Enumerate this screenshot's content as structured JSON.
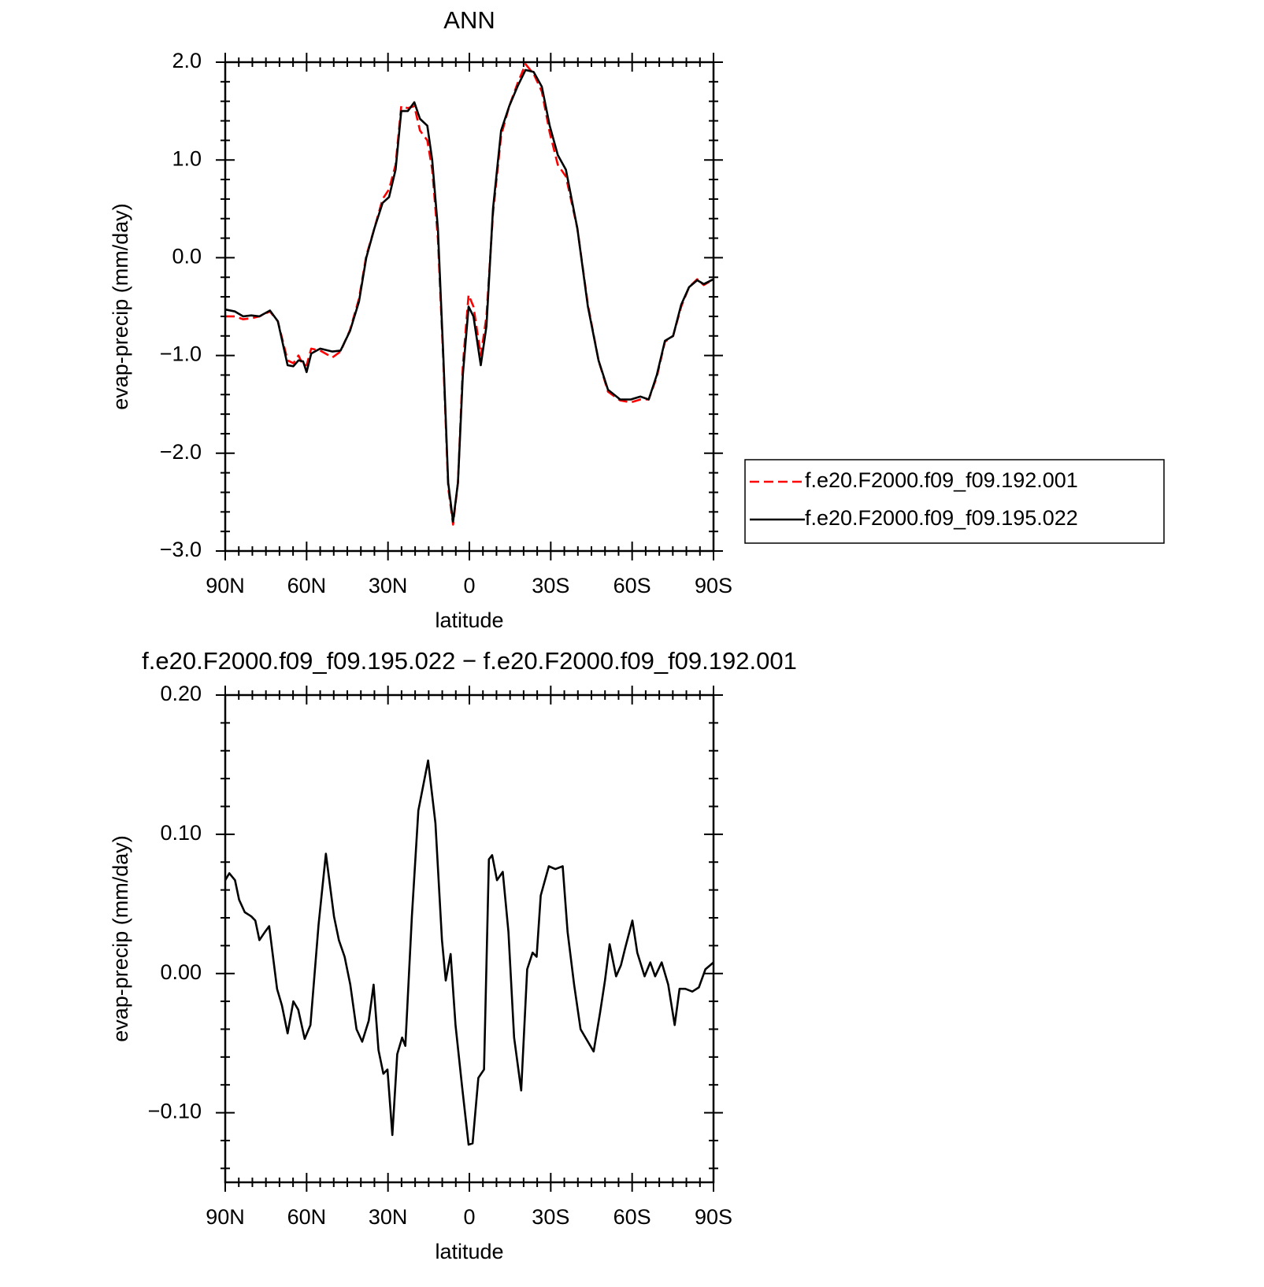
{
  "chart_data": [
    {
      "type": "line",
      "title": "ANN",
      "xlabel": "latitude",
      "ylabel": "evap-precip (mm/day)",
      "x": [
        90,
        86.4,
        83.4,
        80.4,
        77.4,
        73.5,
        70.6,
        67,
        64.9,
        63,
        61.3,
        60,
        58.3,
        55,
        50.5,
        47.5,
        44,
        40.7,
        38,
        35,
        32,
        29.6,
        27.2,
        25.1,
        22.7,
        20.3,
        18.2,
        15.5,
        13.7,
        11.6,
        9.6,
        7.8,
        6,
        4.2,
        2.4,
        0.3,
        -1.5,
        -4.2,
        -6.3,
        -8.7,
        -11.7,
        -14.7,
        -17.7,
        -20.7,
        -23.7,
        -26.7,
        -29.6,
        -32.6,
        -35.6,
        -39.8,
        -43.7,
        -47.6,
        -51.1,
        -55.6,
        -59.5,
        -63.1,
        -66.1,
        -69.1,
        -72.1,
        -75.1,
        -78.1,
        -81,
        -84,
        -86.4,
        -90
      ],
      "series": [
        {
          "name": "f.e20.F2000.f09_f09.192.001",
          "color": "#ff0000",
          "linestyle": "dashed",
          "values": [
            -0.6,
            -0.6,
            -0.63,
            -0.62,
            -0.6,
            -0.55,
            -0.65,
            -1.05,
            -1.08,
            -1.0,
            -1.1,
            -1.1,
            -0.93,
            -0.95,
            -1.02,
            -0.96,
            -0.74,
            -0.42,
            0.02,
            0.3,
            0.6,
            0.7,
            0.95,
            1.55,
            1.53,
            1.55,
            1.3,
            1.2,
            0.9,
            0.2,
            -1.05,
            -2.35,
            -2.73,
            -2.3,
            -1.1,
            -0.38,
            -0.5,
            -1.0,
            -0.6,
            0.45,
            1.25,
            1.55,
            1.78,
            1.98,
            1.88,
            1.7,
            1.28,
            0.95,
            0.83,
            0.3,
            -0.48,
            -1.05,
            -1.37,
            -1.46,
            -1.48,
            -1.45,
            -1.45,
            -1.22,
            -0.86,
            -0.8,
            -0.5,
            -0.3,
            -0.22,
            -0.28,
            -0.22
          ]
        },
        {
          "name": "f.e20.F2000.f09_f09.195.022",
          "color": "#000000",
          "linestyle": "solid",
          "values": [
            -0.53,
            -0.55,
            -0.6,
            -0.59,
            -0.6,
            -0.54,
            -0.65,
            -1.1,
            -1.11,
            -1.05,
            -1.06,
            -1.17,
            -0.98,
            -0.93,
            -0.96,
            -0.95,
            -0.75,
            -0.45,
            0.0,
            0.3,
            0.56,
            0.62,
            0.9,
            1.5,
            1.5,
            1.59,
            1.42,
            1.35,
            1.0,
            0.3,
            -1.0,
            -2.3,
            -2.7,
            -2.3,
            -1.2,
            -0.5,
            -0.6,
            -1.1,
            -0.7,
            0.5,
            1.3,
            1.55,
            1.75,
            1.92,
            1.9,
            1.75,
            1.35,
            1.05,
            0.9,
            0.3,
            -0.5,
            -1.05,
            -1.35,
            -1.45,
            -1.45,
            -1.42,
            -1.45,
            -1.2,
            -0.85,
            -0.8,
            -0.48,
            -0.3,
            -0.23,
            -0.27,
            -0.22
          ]
        }
      ],
      "xlim": [
        90,
        -90
      ],
      "xticks": [
        {
          "value": 90,
          "label": "90N"
        },
        {
          "value": 60,
          "label": "60N"
        },
        {
          "value": 30,
          "label": "30N"
        },
        0,
        {
          "value": -30,
          "label": "30S"
        },
        {
          "value": -60,
          "label": "60S"
        },
        {
          "value": -90,
          "label": "90S"
        }
      ],
      "xminorticks": [
        85,
        80,
        75,
        70,
        65,
        55,
        50,
        45,
        40,
        35,
        25,
        20,
        15,
        10,
        5,
        -5,
        -10,
        -15,
        -20,
        -25,
        -35,
        -40,
        -45,
        -50,
        -55,
        -65,
        -70,
        -75,
        -80,
        -85
      ],
      "ylim": [
        -3.0,
        2.0
      ],
      "yticks": [
        {
          "value": -3.0,
          "label": "−3.0"
        },
        {
          "value": -2.0,
          "label": "−2.0"
        },
        {
          "value": -1.0,
          "label": "−1.0"
        },
        {
          "value": 0.0,
          "label": "0.0"
        },
        {
          "value": 1.0,
          "label": "1.0"
        },
        {
          "value": 2.0,
          "label": "2.0"
        }
      ],
      "yminorticks": [
        -2.8,
        -2.6,
        -2.4,
        -2.2,
        -1.8,
        -1.6,
        -1.4,
        -1.2,
        -0.8,
        -0.6,
        -0.4,
        -0.2,
        0.2,
        0.4,
        0.6,
        0.8,
        1.2,
        1.4,
        1.6,
        1.8
      ],
      "legend": "right"
    },
    {
      "type": "line",
      "title": "f.e20.F2000.f09_f09.195.022 − f.e20.F2000.f09_f09.192.001",
      "xlabel": "latitude",
      "ylabel": "evap-precip (mm/day)",
      "x": [
        90,
        88.5,
        86.4,
        84.9,
        82.8,
        80.4,
        78.9,
        77.4,
        75.3,
        73.8,
        70.9,
        69.1,
        67.0,
        64.9,
        63.1,
        60.7,
        58.6,
        55.6,
        52.9,
        49.9,
        48.1,
        46.0,
        43.9,
        41.6,
        39.5,
        37.1,
        35.3,
        33.5,
        31.7,
        30.2,
        28.4,
        26.6,
        24.8,
        23.6,
        21.2,
        18.8,
        15.2,
        12.5,
        10.1,
        8.7,
        6.9,
        5.1,
        2.7,
        0.3,
        -1.2,
        -3.3,
        -5.4,
        -7.2,
        -8.4,
        -10.2,
        -12.3,
        -14.4,
        -16.5,
        -19.1,
        -21.3,
        -23.3,
        -24.8,
        -26.3,
        -29.3,
        -31.7,
        -34.4,
        -36.2,
        -38.6,
        -41.0,
        -43.7,
        -45.8,
        -48.2,
        -50.0,
        -51.7,
        -54.1,
        -55.9,
        -57.4,
        -60.1,
        -61.9,
        -64.6,
        -66.7,
        -68.5,
        -70.9,
        -73.3,
        -75.7,
        -77.5,
        -79.6,
        -82.2,
        -84.6,
        -87.0,
        -90
      ],
      "series": [
        {
          "name": "f.e20.F2000.f09_f09.195.022 − f.e20.F2000.f09_f09.192.001",
          "color": "#000000",
          "linestyle": "solid",
          "values": [
            0.067,
            0.072,
            0.067,
            0.053,
            0.044,
            0.041,
            0.038,
            0.024,
            0.03,
            0.034,
            -0.011,
            -0.023,
            -0.043,
            -0.02,
            -0.026,
            -0.047,
            -0.037,
            0.035,
            0.086,
            0.041,
            0.024,
            0.012,
            -0.008,
            -0.04,
            -0.049,
            -0.034,
            -0.008,
            -0.055,
            -0.072,
            -0.069,
            -0.116,
            -0.058,
            -0.046,
            -0.052,
            0.041,
            0.117,
            0.153,
            0.108,
            0.024,
            -0.005,
            0.014,
            -0.037,
            -0.081,
            -0.123,
            -0.122,
            -0.075,
            -0.069,
            0.082,
            0.085,
            0.067,
            0.073,
            0.03,
            -0.046,
            -0.084,
            0.003,
            0.015,
            0.012,
            0.056,
            0.077,
            0.075,
            0.077,
            0.03,
            -0.008,
            -0.04,
            -0.049,
            -0.056,
            -0.028,
            -0.005,
            0.021,
            -0.002,
            0.006,
            0.018,
            0.038,
            0.015,
            -0.002,
            0.008,
            -0.002,
            0.008,
            -0.008,
            -0.037,
            -0.011,
            -0.011,
            -0.013,
            -0.01,
            0.003,
            0.008
          ]
        }
      ],
      "xlim": [
        90,
        -90
      ],
      "xticks": [
        {
          "value": 90,
          "label": "90N"
        },
        {
          "value": 60,
          "label": "60N"
        },
        {
          "value": 30,
          "label": "30N"
        },
        0,
        {
          "value": -30,
          "label": "30S"
        },
        {
          "value": -60,
          "label": "60S"
        },
        {
          "value": -90,
          "label": "90S"
        }
      ],
      "xminorticks": [
        85,
        80,
        75,
        70,
        65,
        55,
        50,
        45,
        40,
        35,
        25,
        20,
        15,
        10,
        5,
        -5,
        -10,
        -15,
        -20,
        -25,
        -35,
        -40,
        -45,
        -50,
        -55,
        -65,
        -70,
        -75,
        -80,
        -85
      ],
      "ylim": [
        -0.15,
        0.2
      ],
      "yticks": [
        {
          "value": -0.1,
          "label": "−0.10"
        },
        {
          "value": 0.0,
          "label": "0.00"
        },
        {
          "value": 0.1,
          "label": "0.10"
        },
        {
          "value": 0.2,
          "label": "0.20"
        }
      ],
      "yminorticks": [
        -0.14,
        -0.12,
        -0.08,
        -0.06,
        -0.04,
        -0.02,
        0.02,
        0.04,
        0.06,
        0.08,
        0.12,
        0.14,
        0.16,
        0.18
      ]
    }
  ]
}
